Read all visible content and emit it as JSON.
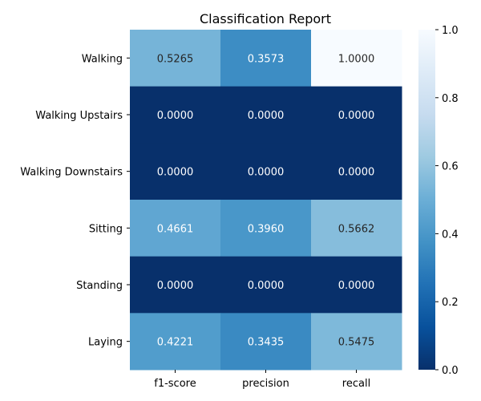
{
  "chart_data": {
    "type": "heatmap",
    "title": "Classification Report",
    "columns": [
      "f1-score",
      "precision",
      "recall"
    ],
    "rows": [
      "Walking",
      "Walking Upstairs",
      "Walking Downstairs",
      "Sitting",
      "Standing",
      "Laying"
    ],
    "values": [
      [
        0.5265,
        0.3573,
        1.0
      ],
      [
        0.0,
        0.0,
        0.0
      ],
      [
        0.0,
        0.0,
        0.0
      ],
      [
        0.4661,
        0.396,
        0.5662
      ],
      [
        0.0,
        0.0,
        0.0
      ],
      [
        0.4221,
        0.3435,
        0.5475
      ]
    ],
    "cell_labels": [
      [
        "0.5265",
        "0.3573",
        "1.0000"
      ],
      [
        "0.0000",
        "0.0000",
        "0.0000"
      ],
      [
        "0.0000",
        "0.0000",
        "0.0000"
      ],
      [
        "0.4661",
        "0.3960",
        "0.5662"
      ],
      [
        "0.0000",
        "0.0000",
        "0.0000"
      ],
      [
        "0.4221",
        "0.3435",
        "0.5475"
      ]
    ],
    "colormap": "Blues_r",
    "vmin": 0.0,
    "vmax": 1.0,
    "colorbar": {
      "ticks": [
        0.0,
        0.2,
        0.4,
        0.6,
        0.8,
        1.0
      ],
      "tick_labels": [
        "0.0",
        "0.2",
        "0.4",
        "0.6",
        "0.8",
        "1.0"
      ]
    },
    "grid": false,
    "legend": "colorbar-right"
  }
}
